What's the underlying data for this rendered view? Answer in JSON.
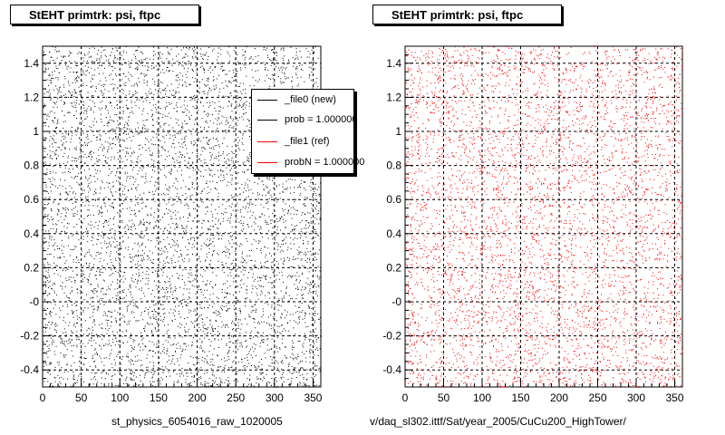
{
  "chart_data": [
    {
      "type": "scatter",
      "title": "StEHT primtrk: psi, ftpc",
      "xlabel": "",
      "ylabel": "",
      "xlim": [
        0,
        360
      ],
      "ylim": [
        -0.5,
        1.5
      ],
      "xticks": [
        "0",
        "50",
        "100",
        "150",
        "200",
        "250",
        "300",
        "350"
      ],
      "yticks": [
        "-0.4",
        "-0.2",
        "-0",
        "0.2",
        "0.4",
        "0.6",
        "0.8",
        "1",
        "1.2",
        "1.4"
      ],
      "grid": true,
      "marker_color": "#000000",
      "points": "uniform random scatter over x 0–360, y -0.5–1.5 (thousands of points)",
      "legend_position": "top-right",
      "legend": [
        {
          "label": "_file0 (new)",
          "color": "#000000"
        },
        {
          "label": "prob = 1.000000",
          "color": "#000000"
        },
        {
          "label": "_file1 (ref)",
          "color": "#ff0000"
        },
        {
          "label": "probN = 1.000000",
          "color": "#ff0000"
        }
      ],
      "footer": "st_physics_6054016_raw_1020005"
    },
    {
      "type": "scatter",
      "title": "StEHT primtrk: psi, ftpc",
      "xlabel": "",
      "ylabel": "",
      "xlim": [
        0,
        360
      ],
      "ylim": [
        -0.5,
        1.5
      ],
      "xticks": [
        "0",
        "50",
        "100",
        "150",
        "200",
        "250",
        "300",
        "350"
      ],
      "yticks": [
        "-0.4",
        "-0.2",
        "-0",
        "0.2",
        "0.4",
        "0.6",
        "0.8",
        "1",
        "1.2",
        "1.4"
      ],
      "grid": true,
      "marker_color": "#ff0000",
      "points": "uniform random scatter over x 0–360, y -0.5–1.5 (thousands of points)",
      "footer": "v/daq_sl302.ittf/Sat/year_2005/CuCu200_HighTower/"
    }
  ]
}
